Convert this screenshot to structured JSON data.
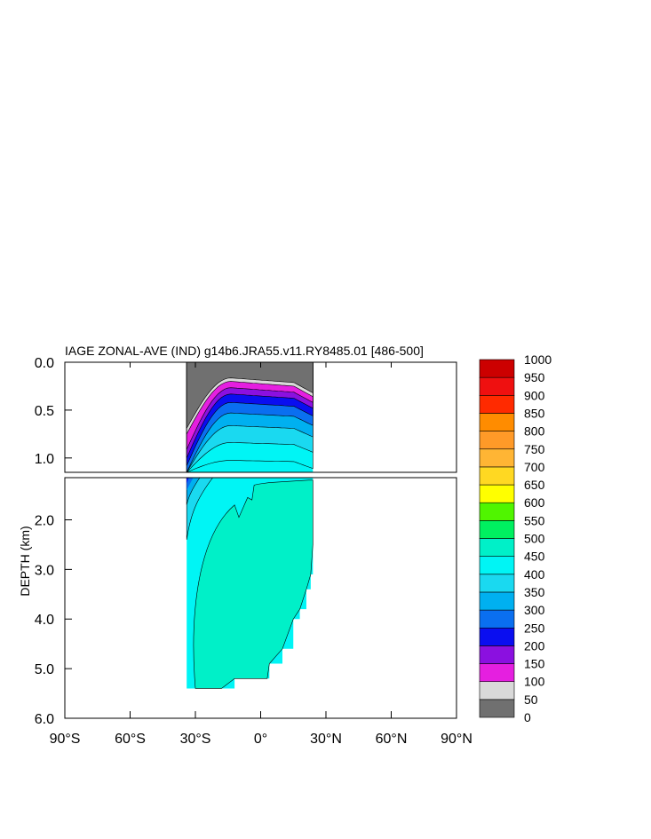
{
  "chart_data": {
    "type": "heatmap",
    "title": "IAGE ZONAL-AVE (IND) g14b6.JRA55.v11.RY8485.01 [486-500]",
    "ylabel": "DEPTH (km)",
    "xlabel": "",
    "xlim": [
      -90,
      90
    ],
    "ylim_top_panel": [
      0.0,
      1.15
    ],
    "ylim_bottom_panel": [
      1.15,
      6.0
    ],
    "x_ticks": [
      {
        "value": -90,
        "label": "90°S"
      },
      {
        "value": -60,
        "label": "60°S"
      },
      {
        "value": -30,
        "label": "30°S"
      },
      {
        "value": 0,
        "label": "0°"
      },
      {
        "value": 30,
        "label": "30°N"
      },
      {
        "value": 60,
        "label": "60°N"
      },
      {
        "value": 90,
        "label": "90°N"
      }
    ],
    "y_ticks_top": [
      {
        "value": 0.0,
        "label": "0.0"
      },
      {
        "value": 0.5,
        "label": "0.5"
      },
      {
        "value": 1.0,
        "label": "1.0"
      }
    ],
    "y_ticks_bottom": [
      {
        "value": 2.0,
        "label": "2.0"
      },
      {
        "value": 3.0,
        "label": "3.0"
      },
      {
        "value": 4.0,
        "label": "4.0"
      },
      {
        "value": 5.0,
        "label": "5.0"
      },
      {
        "value": 6.0,
        "label": "6.0"
      }
    ],
    "levels": [
      0,
      50,
      100,
      150,
      200,
      250,
      300,
      350,
      400,
      450,
      500,
      550,
      600,
      650,
      700,
      750,
      800,
      850,
      900,
      950,
      1000
    ],
    "colors": [
      "#707070",
      "#d9d9d9",
      "#e51fe0",
      "#8b10e0",
      "#0a0ef0",
      "#0a6ff0",
      "#00b0f0",
      "#1ad9f0",
      "#00f5f5",
      "#00f0c8",
      "#00f060",
      "#50f500",
      "#ffff00",
      "#ffd822",
      "#ffb534",
      "#ff9a28",
      "#ff8c00",
      "#ff2a00",
      "#ef1010",
      "#cc0000"
    ],
    "data_extent": {
      "lat_min": -34,
      "lat_max": 24,
      "max_depth_km": 5.4
    },
    "top_panel_bands": [
      {
        "level": 0,
        "south_depth": 0.69,
        "north_depth": 0.26
      },
      {
        "level": 50,
        "south_depth": 0.75,
        "north_depth": 0.3
      },
      {
        "level": 100,
        "south_depth": 0.91,
        "north_depth": 0.36
      },
      {
        "level": 150,
        "south_depth": 1.0,
        "north_depth": 0.42
      },
      {
        "level": 200,
        "south_depth": 1.08,
        "north_depth": 0.5
      },
      {
        "level": 250,
        "south_depth": 1.15,
        "north_depth": 0.6
      },
      {
        "level": 300,
        "south_depth": 1.15,
        "north_depth": 0.72
      },
      {
        "level": 350,
        "south_depth": 1.15,
        "north_depth": 0.88
      },
      {
        "level": 400,
        "south_depth": 1.15,
        "north_depth": 1.05
      }
    ],
    "deep_profile": [
      {
        "lat": -34,
        "bottom": 5.4
      },
      {
        "lat": -28,
        "bottom": 5.4
      },
      {
        "lat": -18,
        "bottom": 5.4
      },
      {
        "lat": -12,
        "bottom": 5.2
      },
      {
        "lat": 3,
        "bottom": 5.2
      },
      {
        "lat": 4,
        "bottom": 4.9
      },
      {
        "lat": 10,
        "bottom": 4.6
      },
      {
        "lat": 15,
        "bottom": 4.0
      },
      {
        "lat": 18,
        "bottom": 3.8
      },
      {
        "lat": 21,
        "bottom": 3.4
      },
      {
        "lat": 23,
        "bottom": 3.1
      },
      {
        "lat": 24,
        "bottom": 2.5
      }
    ]
  }
}
